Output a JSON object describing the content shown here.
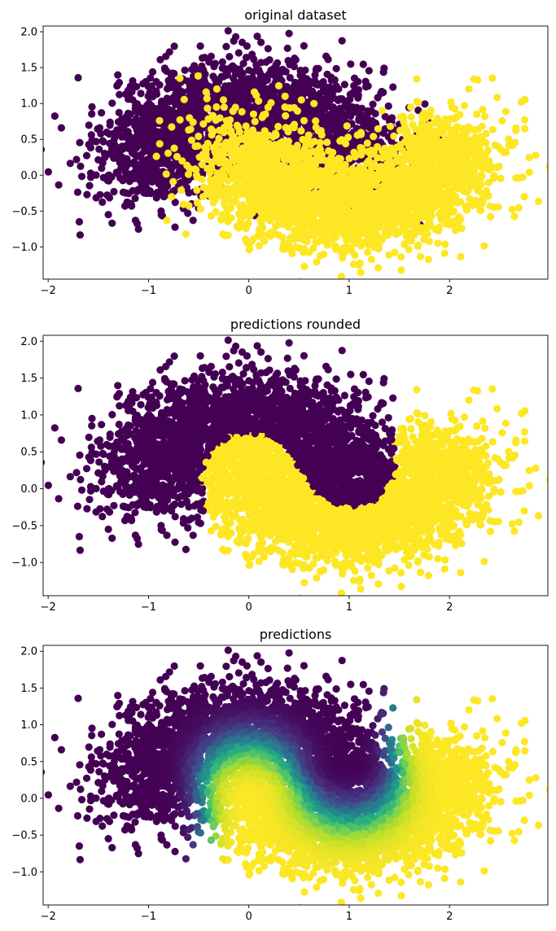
{
  "chart_data": [
    {
      "type": "scatter",
      "title": "original dataset",
      "xlabel": "",
      "ylabel": "",
      "xlim": [
        -2.05,
        2.98
      ],
      "ylim": [
        -1.45,
        2.08
      ],
      "xticks": [
        -2,
        -1,
        0,
        1,
        2
      ],
      "yticks": [
        -1.0,
        -0.5,
        0.0,
        0.5,
        1.0,
        1.5,
        2.0
      ],
      "color_mode": "label",
      "n_points": 5000,
      "dataset": "two-moons",
      "noise": 0.35,
      "colormap": "viridis",
      "classes": [
        {
          "label": 0,
          "color": "#440154"
        },
        {
          "label": 1,
          "color": "#fde725"
        }
      ]
    },
    {
      "type": "scatter",
      "title": "predictions rounded",
      "xlabel": "",
      "ylabel": "",
      "xlim": [
        -2.05,
        2.98
      ],
      "ylim": [
        -1.45,
        2.08
      ],
      "xticks": [
        -2,
        -1,
        0,
        1,
        2
      ],
      "yticks": [
        -1.0,
        -0.5,
        0.0,
        0.5,
        1.0,
        1.5,
        2.0
      ],
      "color_mode": "rounded",
      "n_points": 5000,
      "dataset": "two-moons",
      "noise": 0.35,
      "colormap": "viridis",
      "classes": [
        {
          "label": 0,
          "color": "#440154"
        },
        {
          "label": 1,
          "color": "#fde725"
        }
      ]
    },
    {
      "type": "scatter",
      "title": "predictions",
      "xlabel": "",
      "ylabel": "",
      "xlim": [
        -2.05,
        2.98
      ],
      "ylim": [
        -1.45,
        2.08
      ],
      "xticks": [
        -2,
        -1,
        0,
        1,
        2
      ],
      "yticks": [
        -1.0,
        -0.5,
        0.0,
        0.5,
        1.0,
        1.5,
        2.0
      ],
      "color_mode": "probability",
      "n_points": 5000,
      "dataset": "two-moons",
      "noise": 0.35,
      "colormap": "viridis",
      "colormap_stops": [
        "#440154",
        "#482878",
        "#3e4989",
        "#31688e",
        "#26828e",
        "#1f9e89",
        "#35b779",
        "#6ece58",
        "#b5de2b",
        "#fde725"
      ]
    }
  ]
}
